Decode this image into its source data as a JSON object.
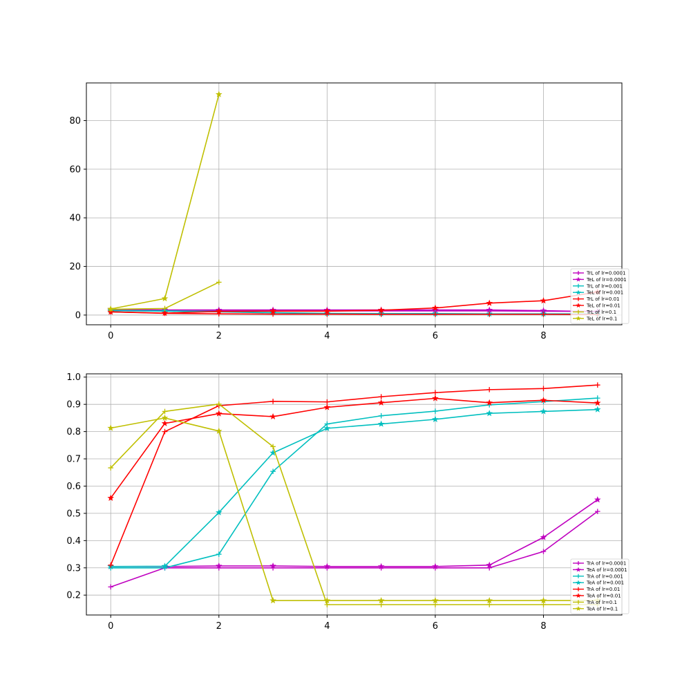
{
  "chart_data": [
    {
      "type": "line",
      "title": "",
      "xlabel": "",
      "ylabel": "",
      "xlim": [
        -0.45,
        9.45
      ],
      "ylim": [
        -4,
        95.5
      ],
      "xticks": [
        0,
        2,
        4,
        6,
        8
      ],
      "yticks": [
        0,
        20,
        40,
        60,
        80
      ],
      "grid": true,
      "legend": "lower-right",
      "series": [
        {
          "name": "TrL of lr=0.0001",
          "color": "#bf00bf",
          "marker": "plus",
          "x": [
            0,
            1,
            2,
            3,
            4,
            5,
            6,
            7,
            8,
            9
          ],
          "y": [
            1.9,
            1.7,
            1.7,
            1.7,
            1.7,
            1.7,
            1.7,
            1.7,
            1.6,
            1.5
          ]
        },
        {
          "name": "TeL of lr=0.0001",
          "color": "#bf00bf",
          "marker": "star",
          "x": [
            0,
            1,
            2,
            3,
            4,
            5,
            6,
            7,
            8,
            9
          ],
          "y": [
            2.2,
            2.1,
            2.1,
            2.1,
            2.1,
            2.1,
            2.1,
            2.1,
            1.8,
            1.4
          ]
        },
        {
          "name": "TrL of lr=0.001",
          "color": "#00bfbf",
          "marker": "plus",
          "x": [
            0,
            1,
            2,
            3,
            4,
            5,
            6,
            7,
            8,
            9
          ],
          "y": [
            1.8,
            1.6,
            1.3,
            0.9,
            0.5,
            0.4,
            0.3,
            0.3,
            0.3,
            0.2
          ]
        },
        {
          "name": "TeL of lr=0.001",
          "color": "#00bfbf",
          "marker": "star",
          "x": [
            0,
            1,
            2,
            3,
            4,
            5,
            6,
            7,
            8,
            9
          ],
          "y": [
            1.9,
            1.7,
            1.5,
            1.0,
            0.7,
            0.6,
            0.6,
            0.5,
            0.5,
            0.5
          ]
        },
        {
          "name": "TrL of lr=0.01",
          "color": "#ff0000",
          "marker": "plus",
          "x": [
            0,
            1,
            2,
            3,
            4,
            5,
            6,
            7,
            8,
            9
          ],
          "y": [
            1.3,
            0.7,
            0.5,
            0.4,
            0.4,
            0.3,
            0.3,
            0.3,
            0.3,
            0.2
          ]
        },
        {
          "name": "TeL of lr=0.01",
          "color": "#ff0000",
          "marker": "star",
          "x": [
            0,
            1,
            2,
            3,
            4,
            5,
            6,
            7,
            8,
            9
          ],
          "y": [
            1.3,
            0.8,
            1.5,
            1.6,
            1.6,
            2.0,
            2.9,
            4.9,
            5.9,
            9.5
          ]
        },
        {
          "name": "TrL of lr=0.1",
          "color": "#bfbf00",
          "marker": "plus",
          "x": [
            0,
            1,
            2
          ],
          "y": [
            2.4,
            2.7,
            13.5
          ]
        },
        {
          "name": "TeL of lr=0.1",
          "color": "#bfbf00",
          "marker": "star",
          "x": [
            0,
            1,
            2
          ],
          "y": [
            2.5,
            6.8,
            90.8
          ]
        }
      ]
    },
    {
      "type": "line",
      "title": "",
      "xlabel": "",
      "ylabel": "",
      "xlim": [
        -0.45,
        9.45
      ],
      "ylim": [
        0.127,
        1.012
      ],
      "xticks": [
        0,
        2,
        4,
        6,
        8
      ],
      "yticks": [
        0.2,
        0.3,
        0.4,
        0.5,
        0.6,
        0.7,
        0.8,
        0.9,
        1.0
      ],
      "yticklabels": [
        "0.2",
        "0.3",
        "0.4",
        "0.5",
        "0.6",
        "0.7",
        "0.8",
        "0.9",
        "1.0"
      ],
      "grid": true,
      "legend": "lower-right",
      "series": [
        {
          "name": "TrA of lr=0.0001",
          "color": "#bf00bf",
          "marker": "plus",
          "x": [
            0,
            1,
            2,
            3,
            4,
            5,
            6,
            7,
            8,
            9
          ],
          "y": [
            0.23,
            0.3,
            0.3,
            0.3,
            0.3,
            0.3,
            0.3,
            0.3,
            0.36,
            0.507
          ]
        },
        {
          "name": "TeA of lr=0.0001",
          "color": "#bf00bf",
          "marker": "star",
          "x": [
            0,
            1,
            2,
            3,
            4,
            5,
            6,
            7,
            8,
            9
          ],
          "y": [
            0.305,
            0.305,
            0.307,
            0.307,
            0.305,
            0.305,
            0.305,
            0.31,
            0.412,
            0.55
          ]
        },
        {
          "name": "TrA of lr=0.001",
          "color": "#00bfbf",
          "marker": "plus",
          "x": [
            0,
            1,
            2,
            3,
            4,
            5,
            6,
            7,
            8,
            9
          ],
          "y": [
            0.3,
            0.3,
            0.35,
            0.654,
            0.828,
            0.858,
            0.875,
            0.898,
            0.91,
            0.923
          ]
        },
        {
          "name": "TeA of lr=0.001",
          "color": "#00bfbf",
          "marker": "star",
          "x": [
            0,
            1,
            2,
            3,
            4,
            5,
            6,
            7,
            8,
            9
          ],
          "y": [
            0.305,
            0.306,
            0.503,
            0.722,
            0.812,
            0.828,
            0.845,
            0.867,
            0.874,
            0.881
          ]
        },
        {
          "name": "TrA of lr=0.01",
          "color": "#ff0000",
          "marker": "plus",
          "x": [
            0,
            1,
            2,
            3,
            4,
            5,
            6,
            7,
            8,
            9
          ],
          "y": [
            0.31,
            0.8,
            0.895,
            0.911,
            0.909,
            0.928,
            0.943,
            0.954,
            0.958,
            0.971
          ]
        },
        {
          "name": "TeA of lr=0.01",
          "color": "#ff0000",
          "marker": "star",
          "x": [
            0,
            1,
            2,
            3,
            4,
            5,
            6,
            7,
            8,
            9
          ],
          "y": [
            0.556,
            0.83,
            0.866,
            0.855,
            0.889,
            0.906,
            0.922,
            0.906,
            0.915,
            0.905
          ]
        },
        {
          "name": "TrA of lr=0.1",
          "color": "#bfbf00",
          "marker": "plus",
          "x": [
            0,
            1,
            2,
            3,
            4,
            5,
            6,
            7,
            8,
            9
          ],
          "y": [
            0.667,
            0.874,
            0.901,
            0.745,
            0.165,
            0.165,
            0.165,
            0.165,
            0.165,
            0.165
          ]
        },
        {
          "name": "TeA of lr=0.1",
          "color": "#bfbf00",
          "marker": "star",
          "x": [
            0,
            1,
            2,
            3,
            4,
            5,
            6,
            7,
            8,
            9
          ],
          "y": [
            0.813,
            0.85,
            0.802,
            0.18,
            0.18,
            0.18,
            0.18,
            0.18,
            0.18,
            0.18
          ]
        }
      ]
    }
  ]
}
